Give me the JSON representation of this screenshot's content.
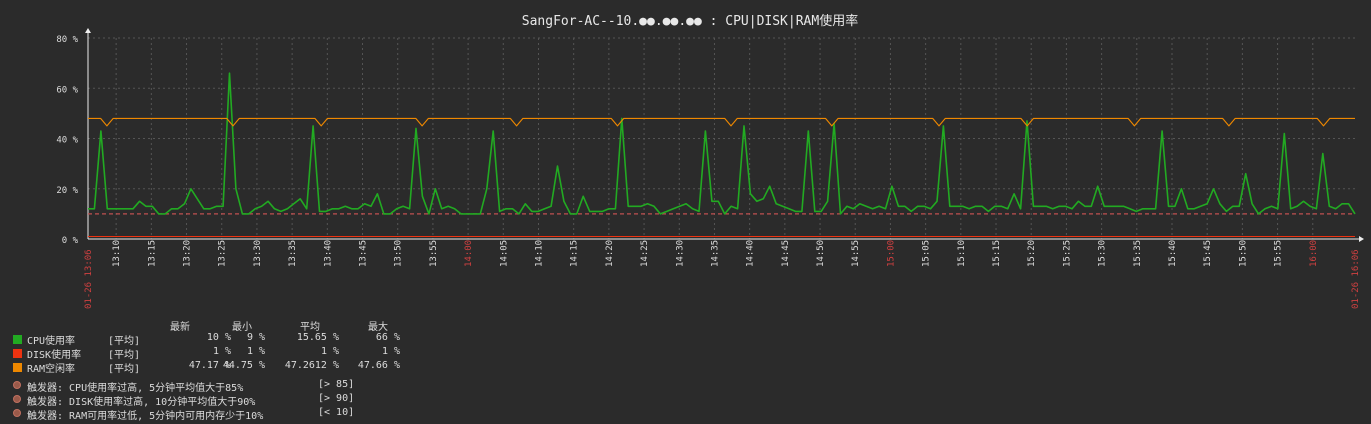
{
  "chart_data": {
    "type": "line",
    "title": "SangFor-AC--10.●●.●●.●● : CPU|DISK|RAM使用率",
    "y_ticks": [
      "80 %",
      "60 %",
      "40 %",
      "20 %",
      "0 %"
    ],
    "ylim": [
      0,
      80
    ],
    "x_ticks": [
      "13:10",
      "13:15",
      "13:20",
      "13:25",
      "13:30",
      "13:35",
      "13:40",
      "13:45",
      "13:50",
      "13:55",
      "14:00",
      "14:05",
      "14:10",
      "14:15",
      "14:20",
      "14:25",
      "14:30",
      "14:35",
      "14:40",
      "14:45",
      "14:50",
      "14:55",
      "15:00",
      "15:05",
      "15:10",
      "15:15",
      "15:20",
      "15:25",
      "15:30",
      "15:35",
      "15:40",
      "15:45",
      "15:50",
      "15:55",
      "16:00"
    ],
    "x_hour_ticks": [
      "14:00",
      "15:00",
      "16:00"
    ],
    "x_start_label": "01-26 13:06",
    "x_end_label": "01-26 16:06",
    "threshold_line": 10,
    "series": [
      {
        "name": "CPU使用率",
        "color": "#22aa22",
        "values": [
          12,
          12,
          43,
          12,
          12,
          12,
          12,
          12,
          15,
          13,
          13,
          10,
          10,
          12,
          12,
          14,
          20,
          16,
          12,
          12,
          13,
          13,
          66,
          20,
          10,
          10,
          12,
          13,
          15,
          12,
          11,
          12,
          14,
          16,
          12,
          45,
          11,
          11,
          12,
          12,
          13,
          12,
          12,
          14,
          13,
          18,
          10,
          10,
          12,
          13,
          12,
          44,
          17,
          10,
          20,
          12,
          13,
          12,
          10,
          10,
          10,
          10,
          20,
          43,
          11,
          12,
          12,
          10,
          14,
          11,
          11,
          12,
          13,
          29,
          15,
          10,
          10,
          17,
          11,
          11,
          11,
          12,
          12,
          48,
          13,
          13,
          13,
          14,
          13,
          10,
          11,
          12,
          13,
          14,
          12,
          11,
          43,
          15,
          15,
          10,
          13,
          12,
          45,
          18,
          15,
          16,
          21,
          14,
          13,
          12,
          11,
          11,
          43,
          11,
          11,
          15,
          46,
          10,
          13,
          12,
          14,
          13,
          12,
          13,
          12,
          21,
          13,
          13,
          11,
          13,
          13,
          12,
          15,
          45,
          13,
          13,
          13,
          12,
          13,
          13,
          11,
          13,
          13,
          12,
          18,
          12,
          47,
          13,
          13,
          13,
          12,
          13,
          13,
          12,
          15,
          13,
          13,
          21,
          13,
          13,
          13,
          13,
          12,
          11,
          12,
          12,
          12,
          43,
          13,
          13,
          20,
          12,
          12,
          13,
          14,
          20,
          14,
          11,
          13,
          13,
          26,
          14,
          10,
          12,
          13,
          12,
          42,
          12,
          13,
          15,
          13,
          12,
          34,
          13,
          12,
          14,
          14,
          10
        ]
      },
      {
        "name": "DISK使用率",
        "color": "#ee3311",
        "values": [
          1,
          1
        ]
      },
      {
        "name": "RAM空闲率",
        "color": "#ee8800",
        "values": [
          48,
          48,
          48,
          45,
          48,
          48,
          48,
          48,
          48,
          48,
          48,
          48,
          48,
          48,
          48,
          48,
          48,
          48,
          48,
          48,
          48,
          48,
          48,
          45,
          48,
          48,
          48,
          48,
          48,
          48,
          48,
          48,
          48,
          48,
          48,
          48,
          48,
          45,
          48,
          48,
          48,
          48,
          48,
          48,
          48,
          48,
          48,
          48,
          48,
          48,
          48,
          48,
          48,
          45,
          48,
          48,
          48,
          48,
          48,
          48,
          48,
          48,
          48,
          48,
          48,
          48,
          48,
          48,
          45,
          48,
          48,
          48,
          48,
          48,
          48,
          48,
          48,
          48,
          48,
          48,
          48,
          48,
          48,
          48,
          45,
          48,
          48,
          48,
          48,
          48,
          48,
          48,
          48,
          48,
          48,
          48,
          48,
          48,
          48,
          48,
          48,
          48,
          45,
          48,
          48,
          48,
          48,
          48,
          48,
          48,
          48,
          48,
          48,
          48,
          48,
          48,
          48,
          48,
          45,
          48,
          48,
          48,
          48,
          48,
          48,
          48,
          48,
          48,
          48,
          48,
          48,
          48,
          48,
          48,
          48,
          45,
          48,
          48,
          48,
          48,
          48,
          48,
          48,
          48,
          48,
          48,
          48,
          48,
          48,
          45,
          48,
          48,
          48,
          48,
          48,
          48,
          48,
          48,
          48,
          48,
          48,
          48,
          48,
          48,
          48,
          48,
          45,
          48,
          48,
          48,
          48,
          48,
          48,
          48,
          48,
          48,
          48,
          48,
          48,
          48,
          48,
          45,
          48,
          48,
          48,
          48,
          48,
          48,
          48,
          48,
          48,
          48,
          48,
          48,
          48,
          48,
          45,
          48,
          48,
          48,
          48,
          48
        ]
      }
    ]
  },
  "legend": {
    "headers": {
      "last": "最新",
      "min": "最小",
      "avg": "平均",
      "max": "最大"
    },
    "rows": [
      {
        "name": "CPU使用率",
        "func": "[平均]",
        "last": "10 %",
        "min": "9 %",
        "avg": "15.65 %",
        "max": "66 %",
        "color": "#22aa22"
      },
      {
        "name": "DISK使用率",
        "func": "[平均]",
        "last": "1 %",
        "min": "1 %",
        "avg": "1 %",
        "max": "1 %",
        "color": "#ee3311"
      },
      {
        "name": "RAM空闲率",
        "func": "[平均]",
        "last": "47.17 %",
        "min": "44.75 %",
        "avg": "47.2612 %",
        "max": "47.66 %",
        "color": "#ee8800"
      }
    ],
    "triggers": [
      {
        "text": "触发器: CPU使用率过高, 5分钟平均值大于85%",
        "cond": "[> 85]"
      },
      {
        "text": "触发器: DISK使用率过高, 10分钟平均值大于90%",
        "cond": "[> 90]"
      },
      {
        "text": "触发器: RAM可用率过低, 5分钟内可用内存少于10%",
        "cond": "[< 10]"
      }
    ]
  }
}
